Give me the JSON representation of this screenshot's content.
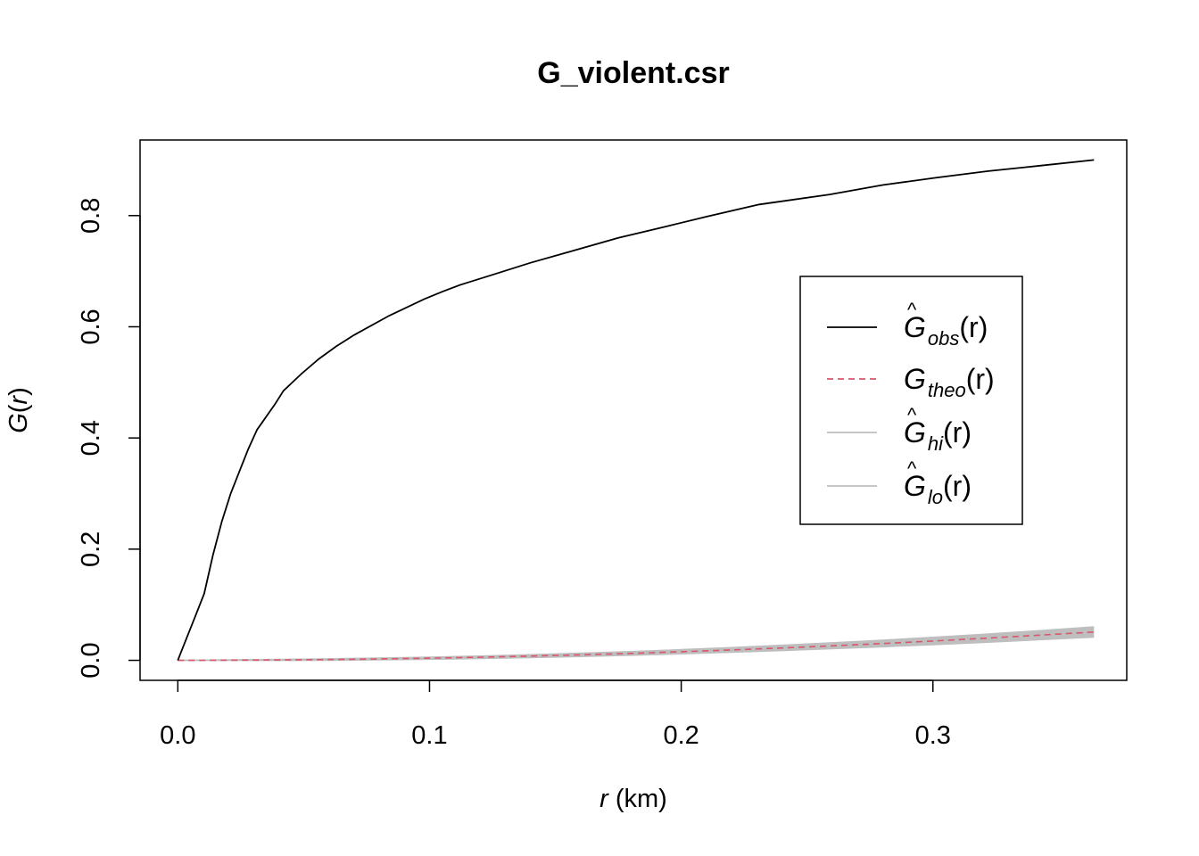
{
  "chart_data": {
    "type": "line",
    "title": "G_violent.csr",
    "xlabel": {
      "var": "r",
      "unit": " (km)"
    },
    "ylabel": {
      "func": "G",
      "open": "(",
      "var": "r",
      "close": ")"
    },
    "xlim": [
      -0.015,
      0.377
    ],
    "ylim": [
      -0.036,
      0.936
    ],
    "xticks": [
      0.0,
      0.1,
      0.2,
      0.3
    ],
    "xtick_labels": [
      "0.0",
      "0.1",
      "0.2",
      "0.3"
    ],
    "yticks": [
      0.0,
      0.2,
      0.4,
      0.6,
      0.8
    ],
    "ytick_labels": [
      "0.0",
      "0.2",
      "0.4",
      "0.6",
      "0.8"
    ],
    "grid": false,
    "legend_position": "right",
    "series": [
      {
        "key": "obs",
        "legend": {
          "hat": "^",
          "base": "G",
          "sub": "obs",
          "arg": "(r)"
        },
        "color": "#000000",
        "style": "solid",
        "x": [
          0.0,
          0.0035,
          0.007,
          0.0105,
          0.014,
          0.0175,
          0.021,
          0.0245,
          0.028,
          0.0315,
          0.0385,
          0.042,
          0.049,
          0.056,
          0.063,
          0.07,
          0.084,
          0.098,
          0.105,
          0.112,
          0.126,
          0.14,
          0.154,
          0.161,
          0.175,
          0.189,
          0.21,
          0.231,
          0.259,
          0.28,
          0.301,
          0.322,
          0.343,
          0.364
        ],
        "y": [
          0.0,
          0.04,
          0.08,
          0.12,
          0.19,
          0.25,
          0.3,
          0.34,
          0.38,
          0.415,
          0.46,
          0.485,
          0.515,
          0.542,
          0.565,
          0.585,
          0.62,
          0.65,
          0.663,
          0.675,
          0.695,
          0.715,
          0.733,
          0.742,
          0.76,
          0.775,
          0.798,
          0.82,
          0.838,
          0.855,
          0.868,
          0.88,
          0.89,
          0.9
        ]
      },
      {
        "key": "theo",
        "legend": {
          "hat": "",
          "base": "G",
          "sub": "theo",
          "arg": "(r)"
        },
        "color": "#DF536B",
        "style": "dashed",
        "x": [
          0.0,
          0.02,
          0.04,
          0.06,
          0.08,
          0.1,
          0.12,
          0.14,
          0.16,
          0.18,
          0.2,
          0.22,
          0.24,
          0.26,
          0.28,
          0.3,
          0.32,
          0.34,
          0.364
        ],
        "y": [
          0.0,
          0.0002,
          0.0006,
          0.0014,
          0.0025,
          0.0039,
          0.0056,
          0.0076,
          0.0099,
          0.0125,
          0.0155,
          0.0187,
          0.0222,
          0.0261,
          0.0302,
          0.0347,
          0.0395,
          0.0446,
          0.051
        ]
      },
      {
        "key": "hi",
        "legend": {
          "hat": "^",
          "base": "G",
          "sub": "hi",
          "arg": "(r)"
        },
        "color": "#BEBEBE",
        "style": "solid",
        "x": [
          0.0,
          0.02,
          0.04,
          0.06,
          0.08,
          0.1,
          0.12,
          0.14,
          0.16,
          0.18,
          0.2,
          0.22,
          0.24,
          0.26,
          0.28,
          0.3,
          0.32,
          0.34,
          0.364
        ],
        "y": [
          0.0,
          0.0008,
          0.0016,
          0.0026,
          0.004,
          0.0057,
          0.0077,
          0.01,
          0.0127,
          0.0157,
          0.0192,
          0.0229,
          0.027,
          0.0315,
          0.0362,
          0.0413,
          0.0468,
          0.0526,
          0.06
        ]
      },
      {
        "key": "lo",
        "legend": {
          "hat": "^",
          "base": "G",
          "sub": "lo",
          "arg": "(r)"
        },
        "color": "#BEBEBE",
        "style": "solid",
        "x": [
          0.0,
          0.02,
          0.04,
          0.06,
          0.08,
          0.1,
          0.12,
          0.14,
          0.16,
          0.18,
          0.2,
          0.22,
          0.24,
          0.26,
          0.28,
          0.3,
          0.32,
          0.34,
          0.364
        ],
        "y": [
          0.0,
          0.0,
          0.0,
          0.0003,
          0.001,
          0.002,
          0.0033,
          0.005,
          0.007,
          0.0093,
          0.0118,
          0.0146,
          0.0176,
          0.021,
          0.0245,
          0.0283,
          0.0323,
          0.0366,
          0.042
        ]
      }
    ]
  }
}
